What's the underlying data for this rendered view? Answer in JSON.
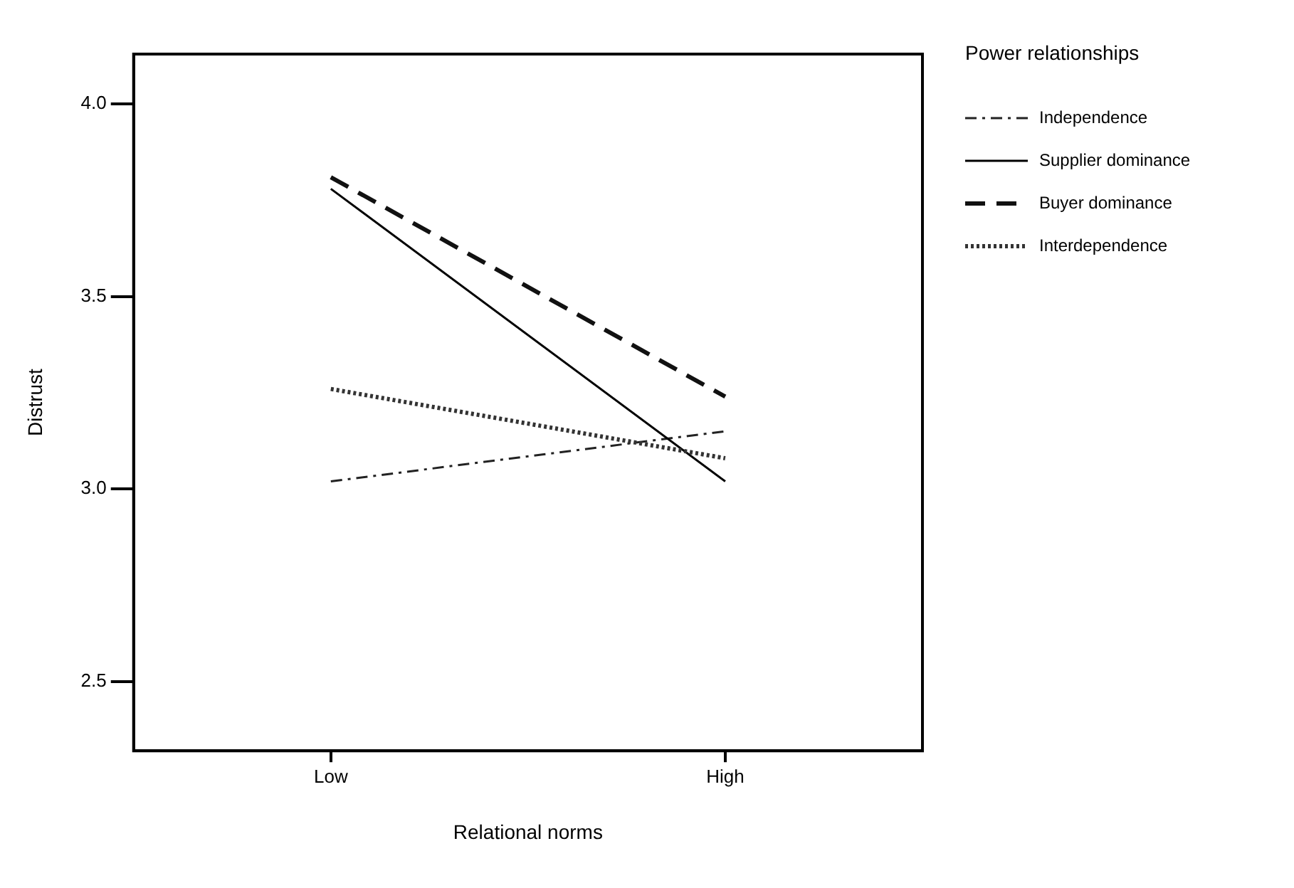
{
  "chart_data": {
    "type": "line",
    "xlabel": "Relational norms",
    "ylabel": "Distrust",
    "legend_title": "Power relationships",
    "legend": "right",
    "grid": false,
    "marker": "none",
    "categories": [
      "Low",
      "High"
    ],
    "ylim": [
      2.32,
      4.13
    ],
    "yticks": [
      2.5,
      {
        "value": 3.0,
        "label": "3.0"
      },
      3.5,
      {
        "value": 4.0,
        "label": "4.0"
      }
    ],
    "series": [
      {
        "name": "Independence",
        "color": "#222222",
        "line_style": "dashdot",
        "values": [
          3.02,
          3.15
        ]
      },
      {
        "name": "Supplier dominance",
        "color": "#000000",
        "line_style": "solid",
        "values": [
          3.78,
          3.02
        ]
      },
      {
        "name": "Buyer dominance",
        "color": "#111111",
        "line_style": "dashed",
        "values": [
          3.81,
          3.24
        ]
      },
      {
        "name": "Interdependence",
        "color": "#333333",
        "line_style": "dotted",
        "values": [
          3.26,
          3.08
        ]
      }
    ]
  }
}
